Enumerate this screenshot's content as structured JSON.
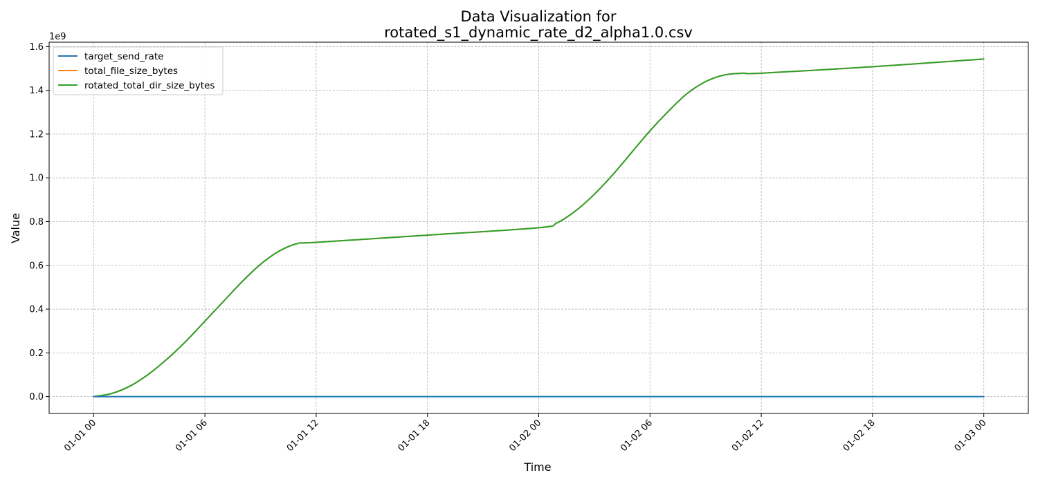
{
  "chart_data": {
    "type": "line",
    "title": "Data Visualization for\nrotated_s1_dynamic_rate_d2_alpha1.0.csv",
    "title_lines": [
      "Data Visualization for",
      "rotated_s1_dynamic_rate_d2_alpha1.0.csv"
    ],
    "xlabel": "Time",
    "ylabel": "Value",
    "y_offset_label": "1e9",
    "x_ticks": [
      "01-01 00",
      "01-01 06",
      "01-01 12",
      "01-01 18",
      "01-02 00",
      "01-02 06",
      "01-02 12",
      "01-02 18",
      "01-03 00"
    ],
    "x_tick_hours": [
      0,
      6,
      12,
      18,
      24,
      30,
      36,
      42,
      48
    ],
    "xlim_hours": [
      -2.4,
      50.4
    ],
    "y_ticks": [
      "0.0",
      "0.2",
      "0.4",
      "0.6",
      "0.8",
      "1.0",
      "1.2",
      "1.4",
      "1.6"
    ],
    "y_tick_values": [
      0.0,
      0.2,
      0.4,
      0.6,
      0.8,
      1.0,
      1.2,
      1.4,
      1.6
    ],
    "ylim": [
      -0.077,
      1.62
    ],
    "y_scale_factor": 1000000000.0,
    "grid": true,
    "legend_position": "top-left",
    "x_unit": "hours from 01-01 00",
    "series": [
      {
        "name": "target_send_rate",
        "color": "#1f77b4",
        "x": [
          0,
          48
        ],
        "values": [
          0,
          0
        ]
      },
      {
        "name": "total_file_size_bytes",
        "color": "#ff7f0e",
        "x": [
          0,
          1,
          2,
          3,
          4,
          5,
          6,
          7,
          8,
          9,
          10,
          11,
          12,
          18,
          24,
          25,
          26,
          27,
          28,
          29,
          30,
          31,
          32,
          33,
          34,
          35,
          36,
          42,
          48
        ],
        "values": [
          0,
          0.015,
          0.05,
          0.105,
          0.175,
          0.255,
          0.345,
          0.435,
          0.525,
          0.605,
          0.665,
          0.7,
          0.705,
          0.738,
          0.772,
          0.795,
          0.85,
          0.925,
          1.015,
          1.115,
          1.215,
          1.305,
          1.385,
          1.44,
          1.47,
          1.478,
          1.478,
          1.508,
          1.543
        ]
      },
      {
        "name": "rotated_total_dir_size_bytes",
        "color": "#2ca02c",
        "x": [
          0,
          1,
          2,
          3,
          4,
          5,
          6,
          7,
          8,
          9,
          10,
          11,
          12,
          18,
          24,
          25,
          26,
          27,
          28,
          29,
          30,
          31,
          32,
          33,
          34,
          35,
          36,
          42,
          48
        ],
        "values": [
          0,
          0.015,
          0.05,
          0.105,
          0.175,
          0.255,
          0.345,
          0.435,
          0.525,
          0.605,
          0.665,
          0.7,
          0.705,
          0.738,
          0.772,
          0.795,
          0.85,
          0.925,
          1.015,
          1.115,
          1.215,
          1.305,
          1.385,
          1.44,
          1.47,
          1.478,
          1.478,
          1.508,
          1.543
        ]
      }
    ]
  }
}
